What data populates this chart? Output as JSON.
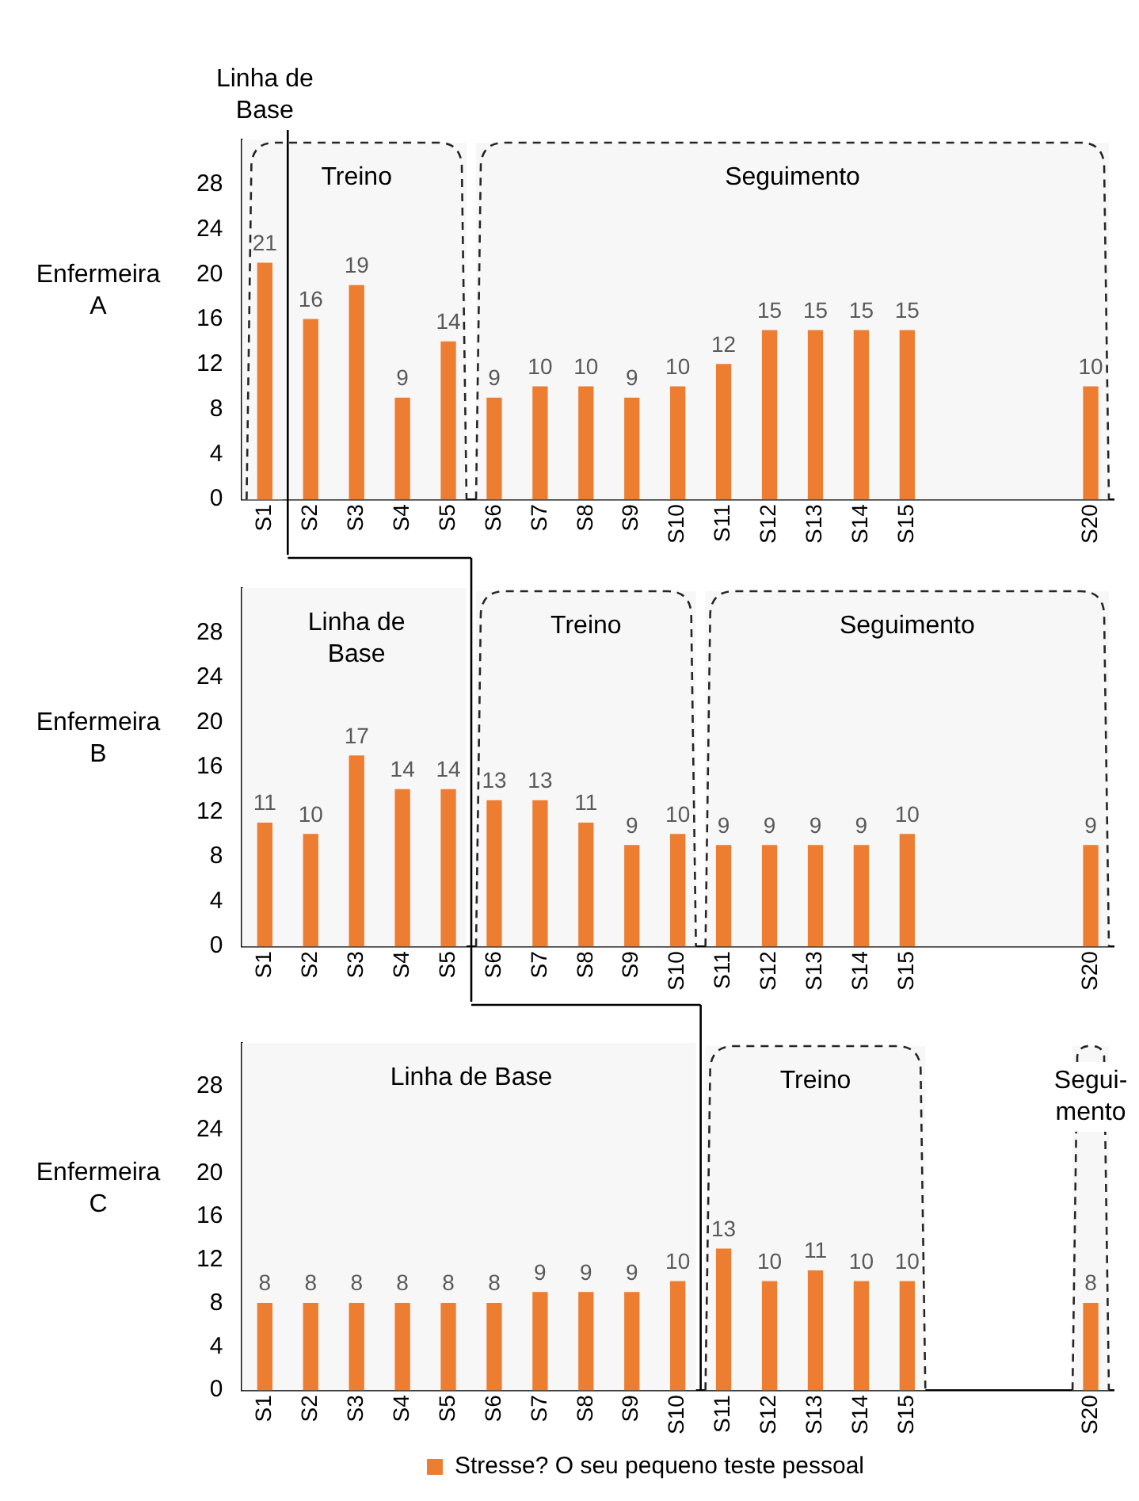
{
  "chart_data": [
    {
      "type": "bar",
      "ylabel": "Enfermeira A",
      "categories": [
        "S1",
        "S2",
        "S3",
        "S4",
        "S5",
        "S6",
        "S7",
        "S8",
        "S9",
        "S10",
        "S11",
        "S12",
        "S13",
        "S14",
        "S15",
        null,
        null,
        null,
        "S20"
      ],
      "series": [
        {
          "color": "#ed7d31",
          "values": [
            21,
            16,
            19,
            9,
            14,
            9,
            10,
            10,
            9,
            10,
            12,
            15,
            15,
            15,
            15,
            null,
            null,
            null,
            10
          ]
        }
      ],
      "ylim": [
        0,
        32
      ],
      "yticks": [
        0,
        4,
        8,
        12,
        16,
        20,
        24,
        28
      ],
      "data_labels": true,
      "grid": false,
      "bands": [
        {
          "axis": "x",
          "from": "S1",
          "to": "S1",
          "label": "Linha de Base",
          "color": "#f7f7f7"
        },
        {
          "axis": "x",
          "from": "S1",
          "to": "S5",
          "label": "Treino",
          "color": "#f7f7f7"
        },
        {
          "axis": "x",
          "from": "S6",
          "to": "S20",
          "label": "Seguimento",
          "color": "#f7f7f7"
        }
      ]
    },
    {
      "type": "bar",
      "ylabel": "Enfermeira B",
      "categories": [
        "S1",
        "S2",
        "S3",
        "S4",
        "S5",
        "S6",
        "S7",
        "S8",
        "S9",
        "S10",
        "S11",
        "S12",
        "S13",
        "S14",
        "S15",
        null,
        null,
        null,
        "S20"
      ],
      "series": [
        {
          "color": "#ed7d31",
          "values": [
            11,
            10,
            17,
            14,
            14,
            13,
            13,
            11,
            9,
            10,
            9,
            9,
            9,
            9,
            10,
            null,
            null,
            null,
            9
          ]
        }
      ],
      "ylim": [
        0,
        32
      ],
      "yticks": [
        0,
        4,
        8,
        12,
        16,
        20,
        24,
        28
      ],
      "data_labels": true,
      "grid": false,
      "bands": [
        {
          "axis": "x",
          "from": "S1",
          "to": "S5",
          "label": "Linha de Base",
          "color": "#f7f7f7"
        },
        {
          "axis": "x",
          "from": "S6",
          "to": "S10",
          "label": "Treino",
          "color": "#f7f7f7"
        },
        {
          "axis": "x",
          "from": "S11",
          "to": "S20",
          "label": "Seguimento",
          "color": "#f7f7f7"
        }
      ]
    },
    {
      "type": "bar",
      "ylabel": "Enfermeira C",
      "categories": [
        "S1",
        "S2",
        "S3",
        "S4",
        "S5",
        "S6",
        "S7",
        "S8",
        "S9",
        "S10",
        "S11",
        "S12",
        "S13",
        "S14",
        "S15",
        null,
        null,
        null,
        "S20"
      ],
      "series": [
        {
          "name": "Stresse? O seu pequeno teste pessoal",
          "color": "#ed7d31",
          "values": [
            8,
            8,
            8,
            8,
            8,
            8,
            9,
            9,
            9,
            10,
            13,
            10,
            11,
            10,
            10,
            null,
            null,
            null,
            8
          ]
        }
      ],
      "ylim": [
        0,
        32
      ],
      "yticks": [
        0,
        4,
        8,
        12,
        16,
        20,
        24,
        28
      ],
      "data_labels": true,
      "grid": false,
      "legend": "bottom",
      "bands": [
        {
          "axis": "x",
          "from": "S1",
          "to": "S10",
          "label": "Linha de Base",
          "color": "#f7f7f7"
        },
        {
          "axis": "x",
          "from": "S11",
          "to": "S15",
          "label": "Treino",
          "color": "#f7f7f7"
        },
        {
          "axis": "x",
          "from": "S20",
          "to": "S20",
          "label": "Segui-mento",
          "color": "#f7f7f7"
        }
      ]
    }
  ]
}
